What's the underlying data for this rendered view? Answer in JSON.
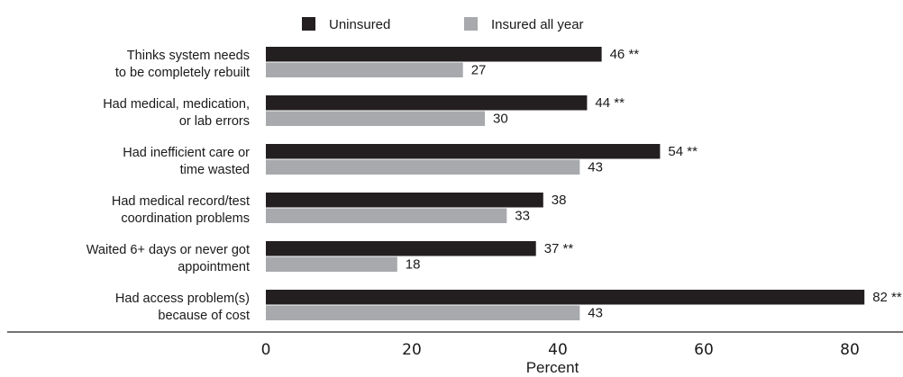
{
  "chart_data": {
    "type": "bar",
    "orientation": "horizontal",
    "categories": [
      [
        "Thinks system needs",
        "to be completely rebuilt"
      ],
      [
        "Had medical, medication,",
        "or lab errors"
      ],
      [
        "Had inefficient care or",
        "time wasted"
      ],
      [
        "Had medical record/test",
        "coordination problems"
      ],
      [
        "Waited 6+ days or never got",
        "appointment"
      ],
      [
        "Had access problem(s)",
        "because of cost"
      ]
    ],
    "series": [
      {
        "name": "Uninsured",
        "color": "#231f20",
        "values": [
          46,
          44,
          54,
          38,
          37,
          82
        ],
        "labels": [
          "46 **",
          "44 **",
          "54 **",
          "38",
          "37 **",
          "82 **"
        ]
      },
      {
        "name": "Insured all year",
        "color": "#a7a9ac",
        "values": [
          27,
          30,
          43,
          33,
          18,
          43
        ],
        "labels": [
          "27",
          "30",
          "43",
          "33",
          "18",
          "43"
        ]
      }
    ],
    "xlabel": "Percent",
    "xlim": [
      0,
      85
    ],
    "xticks": [
      "0",
      "20",
      "40",
      "60",
      "80"
    ],
    "legend": "top",
    "grid": false
  }
}
